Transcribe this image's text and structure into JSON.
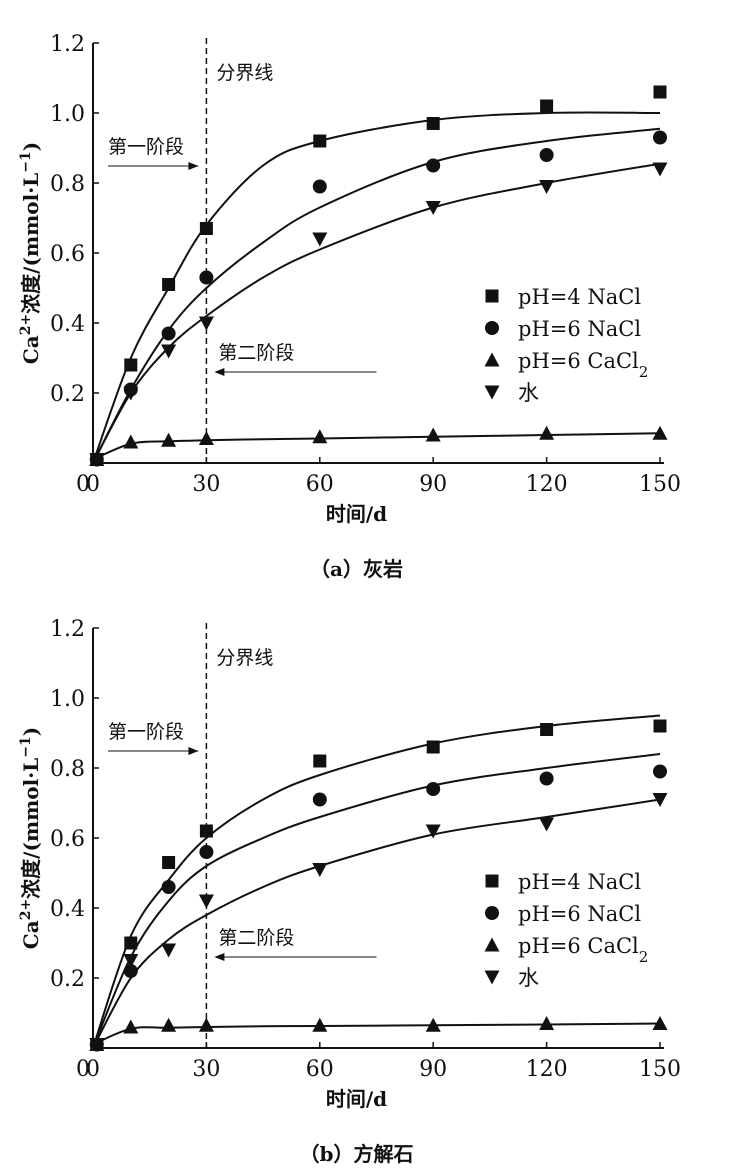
{
  "chart_data": [
    {
      "type": "scatter",
      "caption": "（a）灰岩",
      "xlabel": "时间/d",
      "ylabel": {
        "base": "Ca",
        "sup1": "2+",
        "mid": "浓度/(mmol·L",
        "sup2": "−1",
        "end": ")"
      },
      "xlim": [
        0,
        150
      ],
      "ylim": [
        0,
        1.2
      ],
      "xticks": [
        "0",
        "30",
        "60",
        "90",
        "120",
        "150"
      ],
      "yticks": [
        "0.2",
        "0.4",
        "0.6",
        "0.8",
        "1.0",
        "1.2"
      ],
      "divider": {
        "x": 30,
        "label": "分界线"
      },
      "stage1": "第一阶段",
      "stage2": "第二阶段",
      "legend_position": "right-middle",
      "x": [
        1,
        10,
        20,
        30,
        60,
        90,
        120,
        150
      ],
      "fit_x": [
        0,
        10,
        20,
        30,
        45,
        60,
        90,
        120,
        150
      ],
      "series": [
        {
          "name": "pH=4 NaCl",
          "label_main": "pH=4 NaCl",
          "label_sub": "",
          "marker": "square",
          "values": [
            0.01,
            0.28,
            0.51,
            0.67,
            0.92,
            0.97,
            1.02,
            1.06
          ],
          "fit": [
            0,
            0.3,
            0.5,
            0.68,
            0.85,
            0.92,
            0.98,
            1.0,
            1.0
          ]
        },
        {
          "name": "pH=6 NaCl",
          "label_main": "pH=6 NaCl",
          "label_sub": "",
          "marker": "circle",
          "values": [
            0.01,
            0.21,
            0.37,
            0.53,
            0.79,
            0.85,
            0.88,
            0.93
          ],
          "fit": [
            0,
            0.21,
            0.38,
            0.5,
            0.63,
            0.73,
            0.86,
            0.92,
            0.955
          ]
        },
        {
          "name": "pH=6 CaCl2",
          "label_main": "pH=6 CaCl",
          "label_sub": "2",
          "marker": "triangle-up",
          "values": [
            0.01,
            0.06,
            0.065,
            0.07,
            0.075,
            0.08,
            0.085,
            0.085
          ],
          "fit": [
            0.01,
            0.055,
            0.062,
            0.065,
            0.068,
            0.07,
            0.075,
            0.08,
            0.085
          ]
        },
        {
          "name": "水",
          "label_main": "水",
          "label_sub": "",
          "marker": "triangle-down",
          "values": [
            0.01,
            0.2,
            0.32,
            0.4,
            0.64,
            0.73,
            0.79,
            0.84
          ],
          "fit": [
            0,
            0.2,
            0.33,
            0.42,
            0.53,
            0.61,
            0.73,
            0.8,
            0.855
          ]
        }
      ]
    },
    {
      "type": "scatter",
      "caption": "（b）方解石",
      "xlabel": "时间/d",
      "ylabel": {
        "base": "Ca",
        "sup1": "2+",
        "mid": "浓度/(mmol·L",
        "sup2": "−1",
        "end": ")"
      },
      "xlim": [
        0,
        150
      ],
      "ylim": [
        0,
        1.2
      ],
      "xticks": [
        "0",
        "30",
        "60",
        "90",
        "120",
        "150"
      ],
      "yticks": [
        "0.2",
        "0.4",
        "0.6",
        "0.8",
        "1.0",
        "1.2"
      ],
      "divider": {
        "x": 30,
        "label": "分界线"
      },
      "stage1": "第一阶段",
      "stage2": "第二阶段",
      "legend_position": "right-middle",
      "x": [
        1,
        10,
        20,
        30,
        60,
        90,
        120,
        150
      ],
      "fit_x": [
        0,
        10,
        20,
        30,
        45,
        60,
        90,
        120,
        150
      ],
      "series": [
        {
          "name": "pH=4 NaCl",
          "label_main": "pH=4 NaCl",
          "label_sub": "",
          "marker": "square",
          "values": [
            0.01,
            0.3,
            0.53,
            0.62,
            0.82,
            0.86,
            0.91,
            0.92
          ],
          "fit": [
            0,
            0.32,
            0.48,
            0.6,
            0.71,
            0.78,
            0.87,
            0.92,
            0.95
          ]
        },
        {
          "name": "pH=6 NaCl",
          "label_main": "pH=6 NaCl",
          "label_sub": "",
          "marker": "circle",
          "values": [
            0.01,
            0.22,
            0.46,
            0.56,
            0.71,
            0.74,
            0.77,
            0.79
          ],
          "fit": [
            0,
            0.26,
            0.42,
            0.52,
            0.6,
            0.66,
            0.75,
            0.8,
            0.84
          ]
        },
        {
          "name": "pH=6 CaCl2",
          "label_main": "pH=6 CaCl",
          "label_sub": "2",
          "marker": "triangle-up",
          "values": [
            0.01,
            0.06,
            0.065,
            0.065,
            0.065,
            0.065,
            0.07,
            0.07
          ],
          "fit": [
            0.01,
            0.055,
            0.058,
            0.06,
            0.062,
            0.063,
            0.065,
            0.067,
            0.07
          ]
        },
        {
          "name": "水",
          "label_main": "水",
          "label_sub": "",
          "marker": "triangle-down",
          "values": [
            0.01,
            0.25,
            0.28,
            0.42,
            0.51,
            0.62,
            0.64,
            0.71
          ],
          "fit": [
            0,
            0.2,
            0.31,
            0.38,
            0.46,
            0.52,
            0.61,
            0.66,
            0.71
          ]
        }
      ]
    }
  ]
}
